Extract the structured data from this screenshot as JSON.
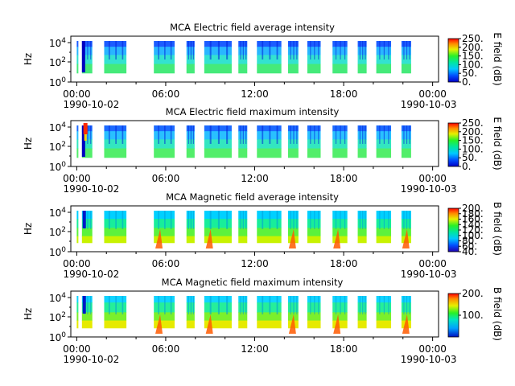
{
  "chart_data": [
    {
      "type": "heatmap",
      "title": "MCA  Electric field average intensity",
      "ylabel": "Hz",
      "y_scale": "log",
      "y_ticks": [
        "10^4",
        "10^2",
        "10^0"
      ],
      "x_ticks": [
        "00:00",
        "06:00",
        "12:00",
        "18:00",
        "00:00"
      ],
      "x_dates": [
        "1990-10-02",
        "1990-10-03"
      ],
      "colorbar": {
        "label": "E field (dB)",
        "ticks": [
          "250.",
          "200.",
          "150.",
          "100.",
          "50.",
          "0."
        ],
        "range": [
          0,
          250
        ]
      },
      "intensity_profile": "electric-average"
    },
    {
      "type": "heatmap",
      "title": "MCA  Electric field maximum intensity",
      "ylabel": "Hz",
      "y_scale": "log",
      "y_ticks": [
        "10^4",
        "10^2",
        "10^0"
      ],
      "x_ticks": [
        "00:00",
        "06:00",
        "12:00",
        "18:00",
        "00:00"
      ],
      "x_dates": [
        "1990-10-02",
        "1990-10-03"
      ],
      "colorbar": {
        "label": "E field (dB)",
        "ticks": [
          "250.",
          "200.",
          "150.",
          "100.",
          "50.",
          "0."
        ],
        "range": [
          0,
          250
        ]
      },
      "intensity_profile": "electric-maximum"
    },
    {
      "type": "heatmap",
      "title": "MCA  Magnetic field average intensity",
      "ylabel": "Hz",
      "y_scale": "log",
      "y_ticks": [
        "10^4",
        "10^2",
        "10^0"
      ],
      "x_ticks": [
        "00:00",
        "06:00",
        "12:00",
        "18:00",
        "00:00"
      ],
      "x_dates": [
        "1990-10-02",
        "1990-10-03"
      ],
      "colorbar": {
        "label": "B field (dB)",
        "ticks": [
          "200.",
          "180.",
          "160.",
          "140.",
          "120.",
          "100.",
          "80.",
          "60.",
          "40."
        ],
        "range": [
          40,
          200
        ]
      },
      "intensity_profile": "magnetic-average"
    },
    {
      "type": "heatmap",
      "title": "MCA  Magnetic field maximum intensity",
      "ylabel": "Hz",
      "y_scale": "log",
      "y_ticks": [
        "10^4",
        "10^2",
        "10^0"
      ],
      "x_ticks": [
        "00:00",
        "06:00",
        "12:00",
        "18:00",
        "00:00"
      ],
      "x_dates": [
        "1990-10-02",
        "1990-10-03"
      ],
      "colorbar": {
        "label": "B field (dB)",
        "ticks": [
          "200.",
          "100."
        ],
        "range": [
          0,
          200
        ]
      },
      "intensity_profile": "magnetic-maximum"
    }
  ],
  "data_segments_hours": [
    [
      0.0,
      0.1
    ],
    [
      0.35,
      1.05
    ],
    [
      1.85,
      3.35
    ],
    [
      5.2,
      6.6
    ],
    [
      7.4,
      7.95
    ],
    [
      8.6,
      10.45
    ],
    [
      10.9,
      11.5
    ],
    [
      12.15,
      13.8
    ],
    [
      14.25,
      14.95
    ],
    [
      15.55,
      16.45
    ],
    [
      17.25,
      18.25
    ],
    [
      18.95,
      19.55
    ],
    [
      20.2,
      21.2
    ],
    [
      21.9,
      22.55
    ]
  ]
}
